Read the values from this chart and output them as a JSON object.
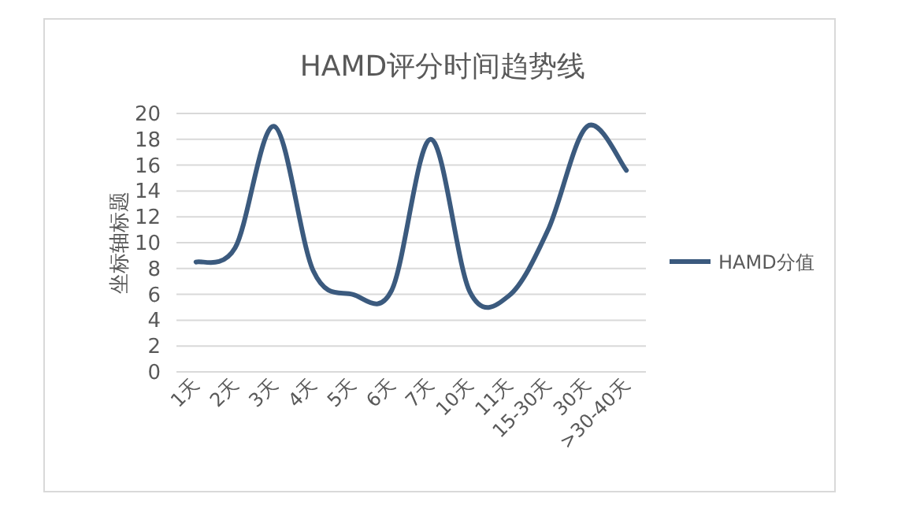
{
  "chart_data": {
    "type": "line",
    "title": "HAMD评分时间趋势线",
    "ylabel": "坐标轴标题",
    "categories": [
      "1天",
      "2天",
      "3天",
      "4天",
      "5天",
      "6天",
      "7天",
      "10天",
      "11天",
      "15-30天",
      "30天",
      ">30-40天"
    ],
    "series": [
      {
        "name": "HAMD分值",
        "color": "#3b5a7e",
        "values": [
          8.5,
          9.6,
          19,
          7.8,
          6,
          6.3,
          18,
          6.2,
          5.9,
          11,
          19,
          15.6
        ]
      }
    ],
    "ylim": [
      0,
      20
    ],
    "yticks": [
      0,
      2,
      4,
      6,
      8,
      10,
      12,
      14,
      16,
      18,
      20
    ],
    "grid": "y",
    "legend": "right"
  }
}
